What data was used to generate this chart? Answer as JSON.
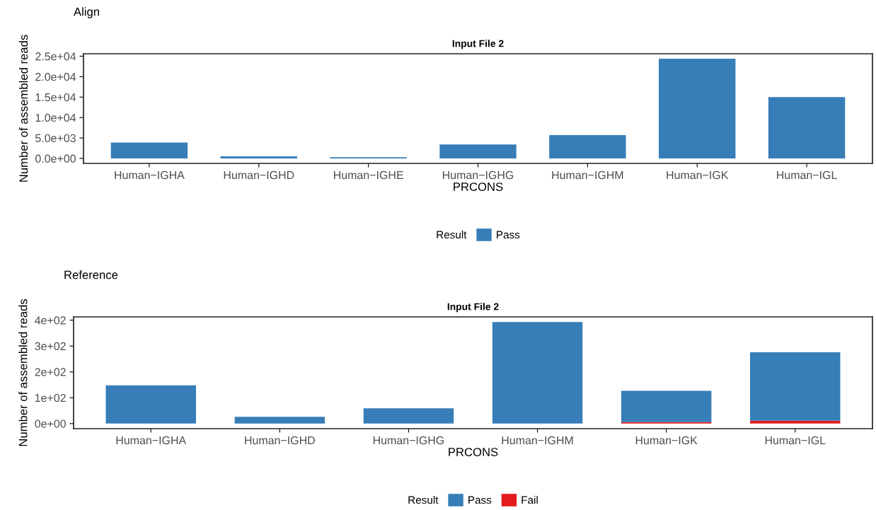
{
  "chart_data": [
    {
      "type": "bar",
      "title": "Align",
      "subtitle": "Input File 2",
      "xlabel": "PRCONS",
      "ylabel": "Number of assembled reads",
      "legend_title": "Result",
      "legend": "bottom",
      "grid": false,
      "stacked": true,
      "categories": [
        "Human−IGHA",
        "Human−IGHD",
        "Human−IGHE",
        "Human−IGHG",
        "Human−IGHM",
        "Human−IGK",
        "Human−IGL"
      ],
      "series": [
        {
          "name": "Pass",
          "color": "#377eb8",
          "values": [
            3900,
            500,
            300,
            3400,
            5700,
            24400,
            15000
          ]
        }
      ],
      "ylim": [
        -1220,
        25600
      ],
      "yticks": [
        {
          "value": 0,
          "label": "0.0e+00"
        },
        {
          "value": 5000,
          "label": "5.0e+03"
        },
        {
          "value": 10000,
          "label": "1.0e+04"
        },
        {
          "value": 15000,
          "label": "1.5e+04"
        },
        {
          "value": 20000,
          "label": "2.0e+04"
        },
        {
          "value": 25000,
          "label": "2.5e+04"
        }
      ]
    },
    {
      "type": "bar",
      "title": "Reference",
      "subtitle": "Input File 2",
      "xlabel": "PRCONS",
      "ylabel": "Number of assembled reads",
      "legend_title": "Result",
      "legend": "bottom",
      "grid": false,
      "stacked": true,
      "categories": [
        "Human−IGHA",
        "Human−IGHD",
        "Human−IGHG",
        "Human−IGHM",
        "Human−IGK",
        "Human−IGL"
      ],
      "series": [
        {
          "name": "Fail",
          "color": "#e41a1c",
          "values": [
            0,
            0,
            0,
            0,
            6,
            11
          ]
        },
        {
          "name": "Pass",
          "color": "#377eb8",
          "values": [
            148,
            26,
            59,
            393,
            121,
            265
          ]
        }
      ],
      "ylim": [
        -19.6,
        412.6
      ],
      "yticks": [
        {
          "value": 0,
          "label": "0e+00"
        },
        {
          "value": 100,
          "label": "1e+02"
        },
        {
          "value": 200,
          "label": "2e+02"
        },
        {
          "value": 300,
          "label": "3e+02"
        },
        {
          "value": 400,
          "label": "4e+02"
        }
      ]
    }
  ]
}
